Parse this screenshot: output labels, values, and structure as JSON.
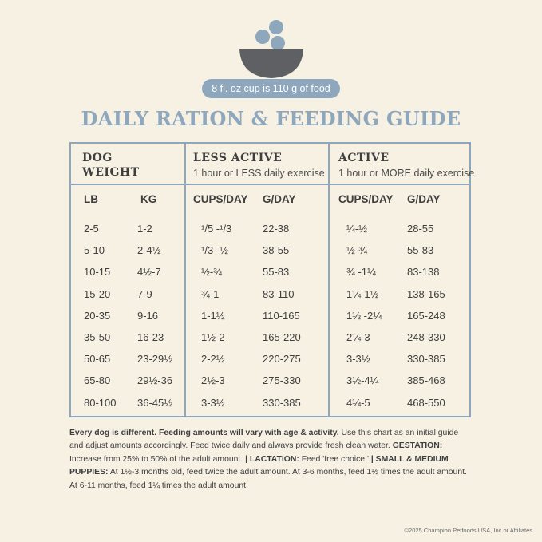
{
  "header": {
    "cup_note": "8 fl. oz cup is 110 g of food",
    "title": "DAILY RATION & FEEDING GUIDE",
    "colors": {
      "accent": "#8ea7bc",
      "bowl": "#5e6063",
      "background": "#f6f1e3"
    }
  },
  "table": {
    "group_headers": {
      "dog_weight_line1": "DOG",
      "dog_weight_line2": "WEIGHT",
      "less_active": "LESS ACTIVE",
      "less_active_sub": "1 hour or LESS daily exercise",
      "active": "ACTIVE",
      "active_sub": "1 hour or MORE daily exercise"
    },
    "columns": [
      "LB",
      "KG",
      "CUPS/DAY",
      "G/DAY",
      "CUPS/DAY",
      "G/DAY"
    ],
    "rows": [
      [
        "2-5",
        "1-2",
        "¹/5 -¹/3",
        "22-38",
        "¼-½",
        "28-55"
      ],
      [
        "5-10",
        "2-4½",
        "¹/3 -½",
        "38-55",
        "½-¾",
        "55-83"
      ],
      [
        "10-15",
        "4½-7",
        "½-¾",
        "55-83",
        "¾ -1¼",
        "83-138"
      ],
      [
        "15-20",
        "7-9",
        "¾-1",
        "83-110",
        "1¼-1½",
        "138-165"
      ],
      [
        "20-35",
        "9-16",
        "1-1½",
        "110-165",
        "1½ -2¼",
        "165-248"
      ],
      [
        "35-50",
        "16-23",
        "1½-2",
        "165-220",
        "2¼-3",
        "248-330"
      ],
      [
        "50-65",
        "23-29½",
        "2-2½",
        "220-275",
        "3-3½",
        "330-385"
      ],
      [
        "65-80",
        "29½-36",
        "2½-3",
        "275-330",
        "3½-4¼",
        "385-468"
      ],
      [
        "80-100",
        "36-45½",
        "3-3½",
        "330-385",
        "4¼-5",
        "468-550"
      ]
    ]
  },
  "footnote": {
    "lead": "Every dog is different. Feeding amounts will vary with age & activity.",
    "text1": " Use this chart as an initial guide and adjust amounts accordingly. Feed twice daily and always provide fresh clean water. ",
    "gestation_label": "GESTATION:",
    "gestation_text": " Increase from 25% to 50% of the adult amount. ",
    "lactation_label": "| LACTATION:",
    "lactation_text": " Feed 'free choice.' ",
    "puppies_label": "| SMALL & MEDIUM PUPPIES:",
    "puppies_text": " At 1½-3 months old, feed twice the adult amount. At 3-6 months, feed 1½ times the adult amount. At 6-11 months, feed 1¼ times the adult amount."
  },
  "copyright": "©2025 Champion Petfoods USA, Inc or Affiliates"
}
